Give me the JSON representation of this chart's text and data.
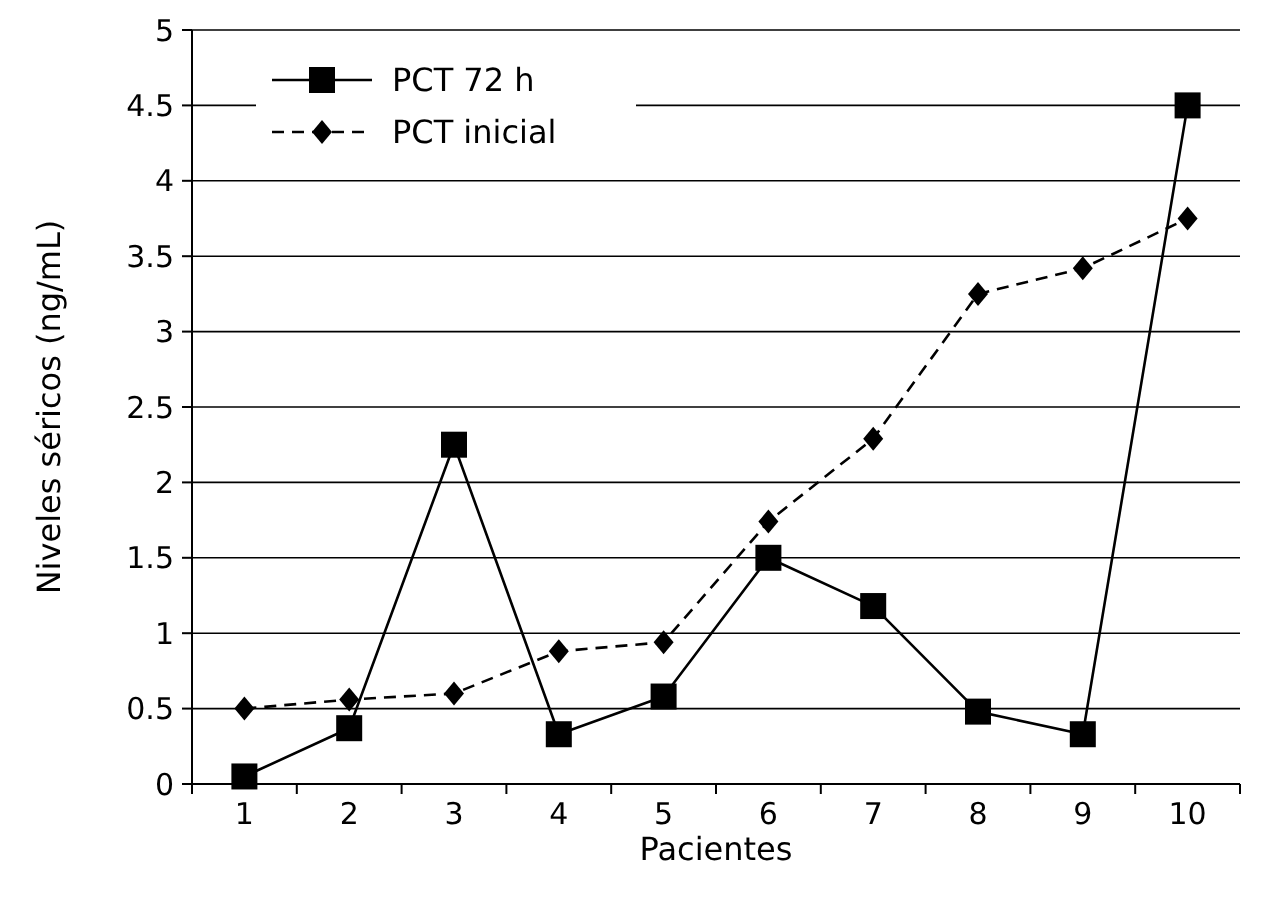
{
  "chart_data": {
    "type": "line",
    "xlabel": "Pacientes",
    "ylabel": "Niveles séricos (ng/mL)",
    "categories": [
      "1",
      "2",
      "3",
      "4",
      "5",
      "6",
      "7",
      "8",
      "9",
      "10"
    ],
    "series": [
      {
        "name": "PCT 72 h",
        "color": "#000000",
        "marker": "square",
        "line_style": "solid",
        "values": [
          0.05,
          0.37,
          2.25,
          0.33,
          0.58,
          1.5,
          1.18,
          0.48,
          0.33,
          4.5
        ]
      },
      {
        "name": "PCT inicial",
        "color": "#000000",
        "marker": "diamond",
        "line_style": "dashed",
        "values": [
          0.5,
          0.56,
          0.6,
          0.88,
          0.94,
          1.74,
          2.29,
          3.25,
          3.42,
          3.75
        ]
      }
    ],
    "ylim": [
      0,
      5
    ],
    "yticks": [
      0,
      0.5,
      1,
      1.5,
      2,
      2.5,
      3,
      3.5,
      4,
      4.5,
      5
    ],
    "grid": "y",
    "legend": "top left"
  }
}
